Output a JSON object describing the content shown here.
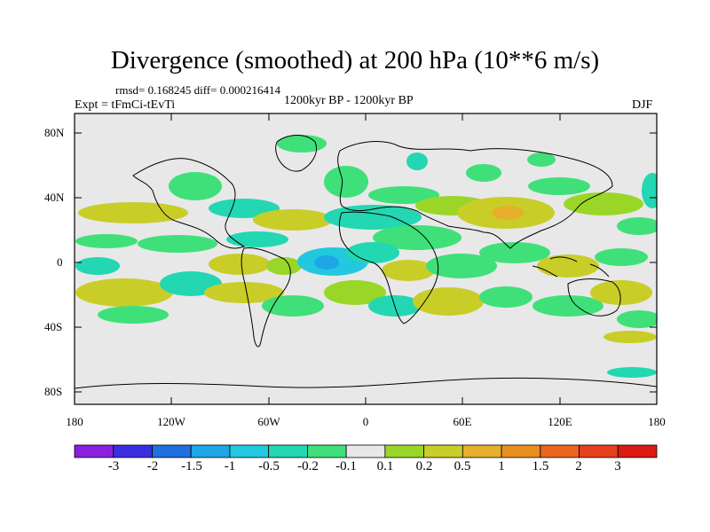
{
  "title": "Divergence (smoothed) at 200 hPa (10**6 m/s)",
  "stats": "rmsd= 0.168245 diff= 0.000216414",
  "experiment": "Expt = tFmCi-tEvTi",
  "period": "1200kyr BP - 1200kyr BP",
  "season": "DJF",
  "lat_labels": [
    "80N",
    "40N",
    "0",
    "40S",
    "80S"
  ],
  "lon_labels": [
    "180",
    "120W",
    "60W",
    "0",
    "60E",
    "120E",
    "180"
  ],
  "colorbar": {
    "labels": [
      "-3",
      "-2",
      "-1.5",
      "-1",
      "-0.5",
      "-0.2",
      "-0.1",
      "0.1",
      "0.2",
      "0.5",
      "1",
      "1.5",
      "2",
      "3"
    ],
    "colors": [
      "#8b1fe0",
      "#3a2ee0",
      "#1e6fe0",
      "#1ea6e6",
      "#22c8de",
      "#22d7b2",
      "#3fe07a",
      "#e8e8e8",
      "#9ad628",
      "#c9cd28",
      "#e6b02a",
      "#e88f20",
      "#ea6420",
      "#e6401e",
      "#dc1a14"
    ]
  },
  "colors": {
    "background": "#e8e8e8",
    "pos_weak": "#9ad628",
    "pos_mid": "#c9cd28",
    "pos_strong": "#e6b02a",
    "neg_weak": "#3fe07a",
    "neg_mid": "#22d7b2",
    "neg_strong": "#22c8de",
    "neg_stronger": "#1ea6e6"
  }
}
